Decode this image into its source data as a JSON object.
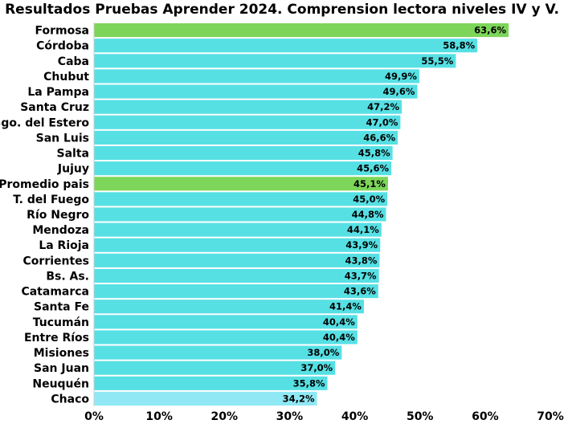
{
  "chart_data": {
    "type": "bar",
    "orientation": "horizontal",
    "title": "Resultados Pruebas Aprender 2024. Comprension lectora niveles IV y V.",
    "xlabel": "",
    "ylabel": "",
    "xlim": [
      0,
      70
    ],
    "x_ticks": [
      "0%",
      "10%",
      "20%",
      "30%",
      "40%",
      "50%",
      "60%",
      "70%"
    ],
    "grid": false,
    "legend": "none",
    "colors": {
      "default": "#56e0e4",
      "highlight": "#7dd65a",
      "last": "#8fe8f4"
    },
    "categories": [
      "Formosa",
      "Córdoba",
      "Caba",
      "Chubut",
      "La Pampa",
      "Santa Cruz",
      "Sgo. del Estero",
      "San Luis",
      "Salta",
      "Jujuy",
      "Promedio pais",
      "T. del Fuego",
      "Río Negro",
      "Mendoza",
      "La Rioja",
      "Corrientes",
      "Bs. As.",
      "Catamarca",
      "Santa Fe",
      "Tucumán",
      "Entre Ríos",
      "Misiones",
      "San Juan",
      "Neuquén",
      "Chaco"
    ],
    "values": [
      63.6,
      58.8,
      55.5,
      49.9,
      49.6,
      47.2,
      47.0,
      46.6,
      45.8,
      45.6,
      45.1,
      45.0,
      44.8,
      44.1,
      43.9,
      43.8,
      43.7,
      43.6,
      41.4,
      40.4,
      40.4,
      38.0,
      37.0,
      35.8,
      34.2
    ],
    "value_labels": [
      "63,6%",
      "58,8%",
      "55,5%",
      "49,9%",
      "49,6%",
      "47,2%",
      "47,0%",
      "46,6%",
      "45,8%",
      "45,6%",
      "45,1%",
      "45,0%",
      "44,8%",
      "44,1%",
      "43,9%",
      "43,8%",
      "43,7%",
      "43,6%",
      "41,4%",
      "40,4%",
      "40,4%",
      "38,0%",
      "37,0%",
      "35,8%",
      "34,2%"
    ],
    "highlighted": [
      "Formosa",
      "Promedio pais"
    ],
    "lighter": [
      "Chaco"
    ]
  }
}
